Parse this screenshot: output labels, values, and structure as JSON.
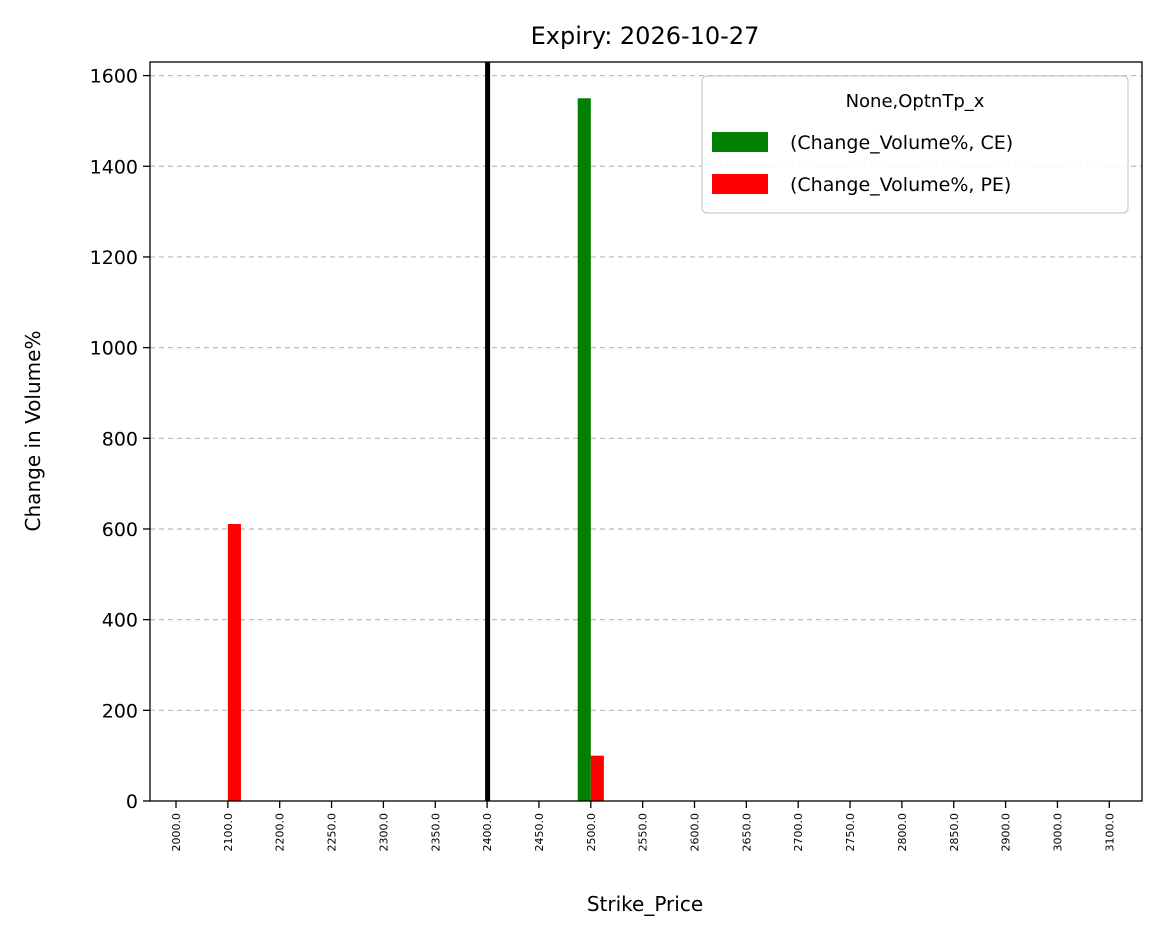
{
  "chart_data": {
    "type": "bar",
    "title": "Expiry: 2026-10-27",
    "xlabel": "Strike_Price",
    "ylabel": "Change in Volume%",
    "categories": [
      "2000.0",
      "2100.0",
      "2200.0",
      "2250.0",
      "2300.0",
      "2350.0",
      "2400.0",
      "2450.0",
      "2500.0",
      "2550.0",
      "2600.0",
      "2650.0",
      "2700.0",
      "2750.0",
      "2800.0",
      "2850.0",
      "2900.0",
      "3000.0",
      "3100.0"
    ],
    "series": [
      {
        "name": "(Change_Volume%, CE)",
        "color": "#008000",
        "values": [
          0,
          0,
          0,
          0,
          0,
          0,
          0,
          0,
          1550,
          0,
          0,
          0,
          0,
          0,
          0,
          0,
          0,
          0,
          0
        ]
      },
      {
        "name": "(Change_Volume%, PE)",
        "color": "#ff0000",
        "values": [
          0,
          611,
          0,
          0,
          0,
          0,
          0,
          0,
          100,
          0,
          0,
          0,
          0,
          0,
          0,
          0,
          0,
          0,
          0
        ]
      }
    ],
    "ylim": [
      0,
      1630
    ],
    "yticks": [
      0,
      200,
      400,
      600,
      800,
      1000,
      1200,
      1400,
      1600
    ],
    "grid": "y-dashed",
    "reference_line": {
      "category": "2400.0",
      "color": "#000000"
    },
    "legend": {
      "title": "None,OptnTp_x",
      "placement": "top-right"
    }
  }
}
